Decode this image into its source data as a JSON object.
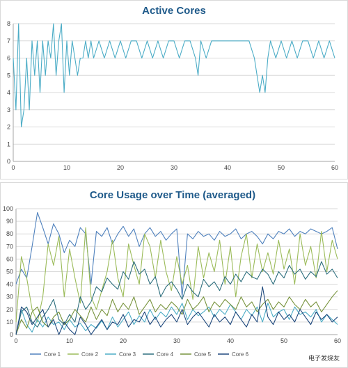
{
  "chart_data": [
    {
      "type": "line",
      "title": "Active Cores",
      "xlabel": "",
      "ylabel": "",
      "xlim": [
        0,
        60
      ],
      "ylim": [
        0,
        8
      ],
      "x_ticks": [
        0,
        10,
        20,
        30,
        40,
        50,
        60
      ],
      "y_ticks": [
        0,
        1,
        2,
        3,
        4,
        5,
        6,
        7,
        8
      ],
      "grid": true,
      "color": "#4bacc6",
      "series": [
        {
          "x": [
            0,
            0.5,
            1,
            1.5,
            2,
            2.5,
            3,
            3.5,
            4,
            4.5,
            5,
            5.5,
            6,
            6.5,
            7,
            7.5,
            8,
            8.5,
            9,
            9.5,
            10,
            10.5,
            11,
            11.5,
            12,
            12.5,
            13,
            13.5,
            14,
            14.5,
            15,
            16,
            17,
            18,
            19,
            20,
            21,
            22,
            23,
            24,
            25,
            26,
            27,
            28,
            29,
            30,
            31,
            32,
            33,
            34,
            34.5,
            35,
            36,
            37,
            38,
            39,
            40,
            41,
            42,
            43,
            44,
            45,
            45.5,
            46,
            46.5,
            47,
            47.5,
            48,
            49,
            50,
            51,
            52,
            53,
            54,
            55,
            56,
            57,
            58,
            59,
            60
          ],
          "values": [
            6,
            3,
            8,
            2,
            3,
            6,
            3,
            7,
            5,
            7,
            4,
            7,
            5,
            7,
            6,
            8,
            5,
            7,
            8,
            4,
            7,
            5,
            7,
            6,
            5,
            6,
            6,
            7,
            6,
            7,
            6,
            7,
            6,
            7,
            6,
            7,
            6,
            7,
            7,
            6,
            7,
            6,
            7,
            6,
            7,
            7,
            6,
            7,
            7,
            6,
            5,
            7,
            6,
            7,
            7,
            7,
            7,
            7,
            7,
            7,
            7,
            6,
            5,
            4,
            5,
            4,
            6,
            7,
            6,
            7,
            6,
            7,
            6,
            7,
            7,
            6,
            7,
            6,
            7,
            6
          ]
        }
      ]
    },
    {
      "type": "line",
      "title": "Core Usage over Time (averaged)",
      "xlabel": "",
      "ylabel": "",
      "xlim": [
        0,
        60
      ],
      "ylim": [
        0,
        100
      ],
      "x_ticks": [
        0,
        10,
        20,
        30,
        40,
        50,
        60
      ],
      "y_ticks": [
        0,
        10,
        20,
        30,
        40,
        50,
        60,
        70,
        80,
        90,
        100
      ],
      "grid": true,
      "legend": "bottom",
      "x": [
        0,
        1,
        2,
        3,
        4,
        5,
        6,
        7,
        8,
        9,
        10,
        11,
        12,
        13,
        14,
        15,
        16,
        17,
        18,
        19,
        20,
        21,
        22,
        23,
        24,
        25,
        26,
        27,
        28,
        29,
        30,
        31,
        32,
        33,
        34,
        35,
        36,
        37,
        38,
        39,
        40,
        41,
        42,
        43,
        44,
        45,
        46,
        47,
        48,
        49,
        50,
        51,
        52,
        53,
        54,
        55,
        56,
        57,
        58,
        59,
        60
      ],
      "series": [
        {
          "name": "Core 1",
          "color": "#4f81bd",
          "values": [
            40,
            52,
            45,
            70,
            97,
            85,
            72,
            88,
            80,
            65,
            75,
            70,
            85,
            80,
            40,
            82,
            78,
            85,
            72,
            80,
            86,
            78,
            84,
            70,
            80,
            85,
            78,
            82,
            75,
            80,
            84,
            30,
            80,
            76,
            82,
            78,
            80,
            75,
            82,
            78,
            80,
            84,
            76,
            80,
            82,
            78,
            72,
            80,
            76,
            82,
            80,
            84,
            78,
            82,
            80,
            84,
            82,
            80,
            82,
            85,
            68
          ]
        },
        {
          "name": "Core 2",
          "color": "#9bbb59",
          "values": [
            10,
            62,
            45,
            20,
            10,
            30,
            72,
            55,
            78,
            30,
            68,
            45,
            25,
            85,
            30,
            20,
            35,
            50,
            75,
            45,
            30,
            72,
            55,
            40,
            80,
            70,
            45,
            75,
            50,
            35,
            62,
            40,
            55,
            28,
            70,
            45,
            65,
            50,
            75,
            40,
            70,
            30,
            62,
            80,
            45,
            72,
            50,
            65,
            48,
            75,
            52,
            68,
            40,
            80,
            55,
            70,
            45,
            82,
            50,
            75,
            60
          ]
        },
        {
          "name": "Core 3",
          "color": "#4bacc6",
          "values": [
            0,
            20,
            8,
            2,
            12,
            6,
            14,
            8,
            10,
            4,
            12,
            6,
            9,
            3,
            8,
            5,
            11,
            4,
            14,
            6,
            12,
            18,
            8,
            15,
            10,
            20,
            12,
            18,
            14,
            22,
            16,
            25,
            12,
            20,
            15,
            18,
            22,
            14,
            20,
            16,
            24,
            18,
            12,
            20,
            15,
            22,
            10,
            25,
            14,
            18,
            20,
            12,
            22,
            16,
            18,
            14,
            20,
            10,
            16,
            12,
            8
          ]
        },
        {
          "name": "Core 4",
          "color": "#2e6f7e",
          "values": [
            0,
            18,
            22,
            10,
            6,
            14,
            20,
            28,
            12,
            8,
            16,
            10,
            30,
            20,
            26,
            38,
            34,
            45,
            40,
            36,
            50,
            44,
            58,
            48,
            52,
            40,
            46,
            30,
            38,
            42,
            36,
            28,
            40,
            34,
            30,
            44,
            38,
            42,
            35,
            46,
            40,
            48,
            42,
            50,
            46,
            44,
            52,
            48,
            40,
            50,
            45,
            55,
            48,
            52,
            44,
            50,
            46,
            58,
            48,
            52,
            45
          ]
        },
        {
          "name": "Core 5",
          "color": "#77933c",
          "values": [
            0,
            12,
            5,
            18,
            22,
            10,
            6,
            14,
            18,
            8,
            12,
            20,
            15,
            10,
            22,
            12,
            20,
            15,
            28,
            18,
            25,
            20,
            30,
            16,
            22,
            28,
            18,
            24,
            20,
            26,
            22,
            16,
            28,
            20,
            24,
            30,
            18,
            26,
            22,
            28,
            24,
            20,
            30,
            22,
            26,
            18,
            24,
            28,
            20,
            26,
            22,
            30,
            24,
            20,
            28,
            22,
            26,
            18,
            24,
            30,
            35
          ]
        },
        {
          "name": "Core 6",
          "color": "#1f497d",
          "values": [
            0,
            22,
            18,
            8,
            14,
            20,
            6,
            12,
            0,
            10,
            4,
            0,
            14,
            8,
            0,
            6,
            12,
            4,
            10,
            8,
            16,
            6,
            12,
            10,
            18,
            8,
            14,
            6,
            12,
            16,
            10,
            20,
            8,
            14,
            18,
            12,
            6,
            16,
            10,
            14,
            8,
            18,
            12,
            6,
            16,
            10,
            38,
            14,
            8,
            18,
            12,
            16,
            10,
            20,
            14,
            8,
            18,
            12,
            16,
            10,
            14
          ]
        }
      ]
    }
  ],
  "watermark": "电子发烧友"
}
